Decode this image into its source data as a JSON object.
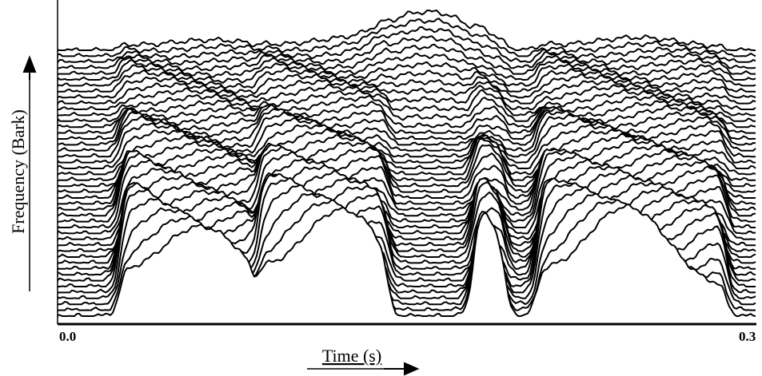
{
  "figure": {
    "y_label": "Frequency (Bark)",
    "x_label": "Time (s)",
    "x_ticks": [
      "0.0",
      "0.3"
    ]
  }
}
